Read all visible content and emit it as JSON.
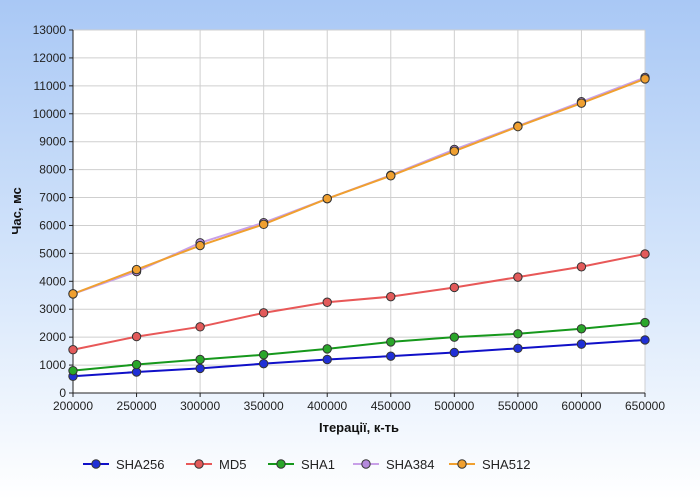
{
  "chart_data": {
    "type": "line",
    "title": "",
    "xlabel": "Ітерації, к-ть",
    "ylabel": "Час, мс",
    "xlim": [
      200000,
      650000
    ],
    "ylim": [
      0,
      13000
    ],
    "grid": true,
    "legend_position": "bottom",
    "x": [
      200000,
      250000,
      300000,
      350000,
      400000,
      450000,
      500000,
      550000,
      600000,
      650000
    ],
    "x_tick_labels": [
      "200000",
      "250000",
      "300000",
      "350000",
      "400000",
      "450000",
      "500000",
      "550000",
      "600000",
      "650000"
    ],
    "y_tick_labels": [
      "0",
      "1000",
      "2000",
      "3000",
      "4000",
      "5000",
      "6000",
      "7000",
      "8000",
      "9000",
      "10000",
      "11000",
      "12000",
      "13000"
    ],
    "series": [
      {
        "name": "SHA256",
        "color": "#1010c8",
        "marker_fill": "#1f2fd6",
        "values": [
          600,
          750,
          880,
          1050,
          1200,
          1320,
          1450,
          1600,
          1750,
          1900
        ]
      },
      {
        "name": "MD5",
        "color": "#e85858",
        "marker_fill": "#e25a5a",
        "values": [
          1550,
          2020,
          2370,
          2870,
          3250,
          3450,
          3780,
          4150,
          4520,
          4980
        ]
      },
      {
        "name": "SHA1",
        "color": "#16981c",
        "marker_fill": "#2aa62a",
        "values": [
          800,
          1020,
          1200,
          1370,
          1580,
          1830,
          2000,
          2120,
          2300,
          2520
        ]
      },
      {
        "name": "SHA384",
        "color": "#c8a0e8",
        "marker_fill": "#b48adc",
        "values": [
          3550,
          4350,
          5380,
          6100,
          6960,
          7800,
          8720,
          9560,
          10430,
          11300
        ]
      },
      {
        "name": "SHA512",
        "color": "#f0a030",
        "marker_fill": "#f0a030",
        "values": [
          3550,
          4420,
          5280,
          6040,
          6960,
          7780,
          8660,
          9540,
          10380,
          11250
        ]
      }
    ]
  }
}
